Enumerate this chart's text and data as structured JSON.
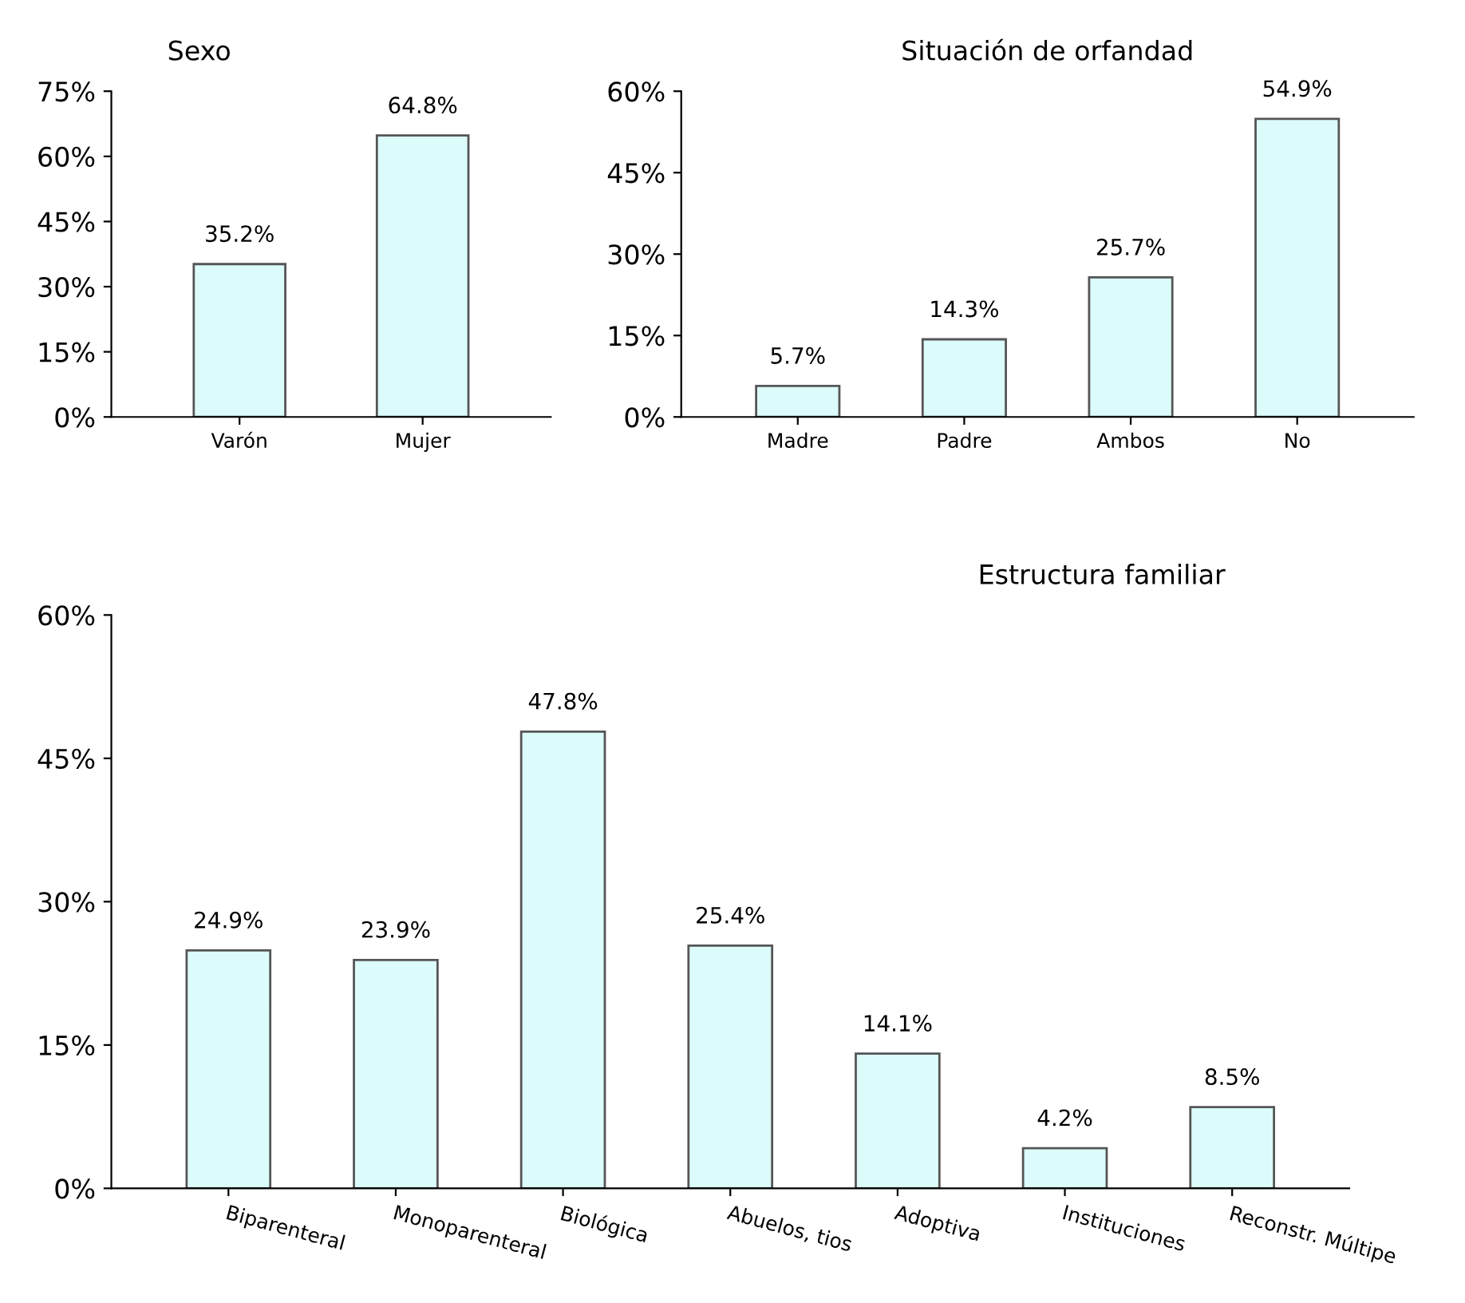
{
  "chart_data": [
    {
      "type": "bar",
      "title": "Sexo",
      "categories": [
        "Varón",
        "Mujer"
      ],
      "values": [
        35.2,
        64.8
      ],
      "color": "#dcfbfb",
      "ylim": [
        0,
        75
      ],
      "yticks": [
        {
          "value": 0,
          "label": "0%"
        },
        {
          "value": 15,
          "label": "15%"
        },
        {
          "value": 30,
          "label": "30%"
        },
        {
          "value": 45,
          "label": "45%"
        },
        {
          "value": 60,
          "label": "60%"
        },
        {
          "value": 75,
          "label": "75%"
        }
      ],
      "value_labels": [
        "35.2%",
        "64.8%"
      ],
      "grid": false,
      "legend": false
    },
    {
      "type": "bar",
      "title": "Situación de orfandad",
      "categories": [
        "Madre",
        "Padre",
        "Ambos",
        "No"
      ],
      "values": [
        5.7,
        14.3,
        25.7,
        54.9
      ],
      "color": "#dcfbfb",
      "ylim": [
        0,
        60
      ],
      "yticks": [
        {
          "value": 0,
          "label": "0%"
        },
        {
          "value": 15,
          "label": "15%"
        },
        {
          "value": 30,
          "label": "30%"
        },
        {
          "value": 45,
          "label": "45%"
        },
        {
          "value": 60,
          "label": "60%"
        }
      ],
      "value_labels": [
        "5.7%",
        "14.3%",
        "25.7%",
        "54.9%"
      ],
      "grid": false,
      "legend": false
    },
    {
      "type": "bar",
      "title": "Estructura familiar",
      "categories": [
        "Biparenteral",
        "Monoparenteral",
        "Biológica",
        "Abuelos, tios",
        "Adoptiva",
        "Instituciones",
        "Reconstr. Múltipe"
      ],
      "values": [
        24.9,
        23.9,
        47.8,
        25.4,
        14.1,
        4.2,
        8.5
      ],
      "color": "#dcfbfb",
      "ylim": [
        0,
        60
      ],
      "yticks": [
        {
          "value": 0,
          "label": "0%"
        },
        {
          "value": 15,
          "label": "15%"
        },
        {
          "value": 30,
          "label": "30%"
        },
        {
          "value": 45,
          "label": "45%"
        },
        {
          "value": 60,
          "label": "60%"
        }
      ],
      "value_labels": [
        "24.9%",
        "23.9%",
        "47.8%",
        "25.4%",
        "14.1%",
        "4.2%",
        "8.5%"
      ],
      "grid": false,
      "legend": false
    }
  ]
}
